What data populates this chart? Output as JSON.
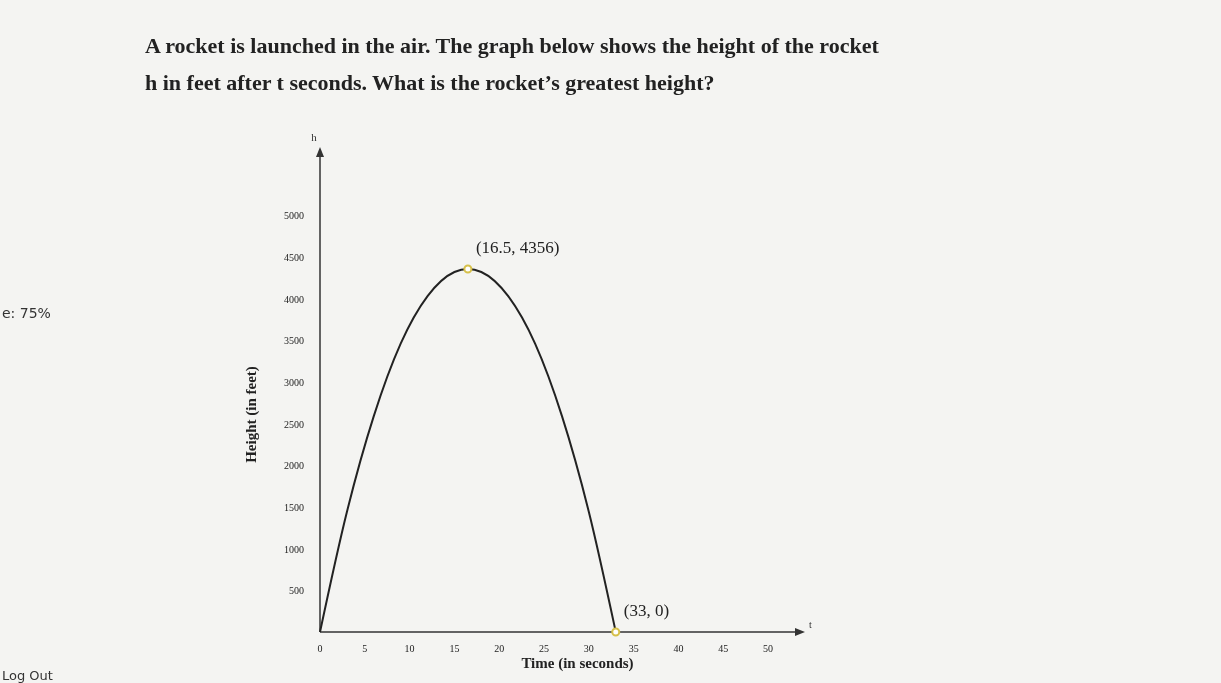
{
  "chart_data": {
    "type": "line",
    "title": "A rocket is launched in the air. The graph below shows the height of the rocket h in feet after t seconds. What is the rocket’s greatest height?",
    "xlabel": "Time (in seconds)",
    "ylabel": "Height (in feet)",
    "xlim": [
      0,
      53
    ],
    "ylim": [
      0,
      5700
    ],
    "xticks": [
      0,
      5,
      10,
      15,
      20,
      25,
      30,
      35,
      40,
      45,
      50
    ],
    "yticks": [
      500,
      1000,
      1500,
      2000,
      2500,
      3000,
      3500,
      4000,
      4500,
      5000
    ],
    "series": [
      {
        "color": "#222222",
        "x": [
          0,
          3,
          6,
          9,
          12,
          15,
          16.5,
          18,
          21,
          24,
          27,
          30,
          33
        ],
        "values": [
          0,
          1440,
          2590,
          3460,
          4030,
          4320,
          4356,
          4320,
          4030,
          3460,
          2590,
          1440,
          0
        ]
      },
      {
        "type": "scatter",
        "color": "#d6c04a",
        "x": [
          16.5,
          33
        ],
        "values": [
          4356,
          0
        ]
      }
    ],
    "annotations": [
      {
        "text": "(16.5, 4356)",
        "x": 16.5,
        "y": 4356
      },
      {
        "text": "(33, 0)",
        "x": 33,
        "y": 0
      },
      "h",
      "t",
      "e: 75%",
      "Log Out"
    ],
    "grid": false
  }
}
